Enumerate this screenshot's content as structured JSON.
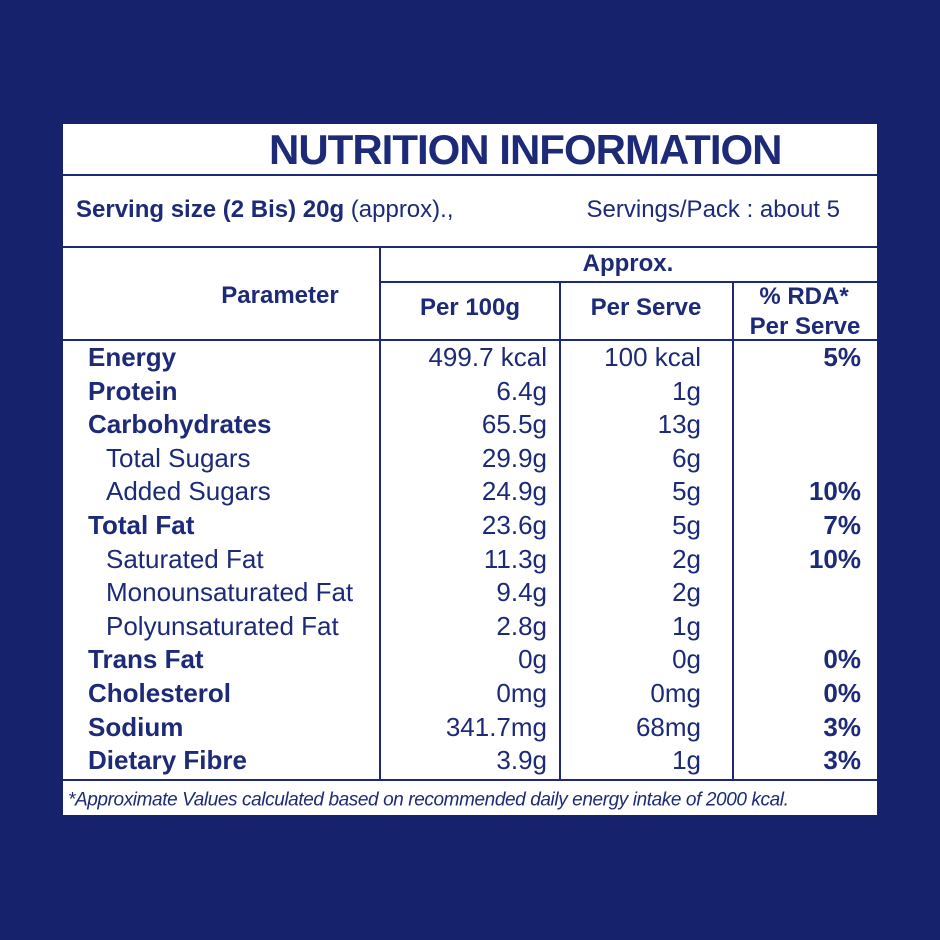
{
  "header": {
    "title": "NUTRITION INFORMATION",
    "serving_size": "Serving size (2 Bis) 20g",
    "serving_note": "(approx).,",
    "servings_per_pack": "Servings/Pack : about 5"
  },
  "table": {
    "columns": {
      "parameter": "Parameter",
      "approx": "Approx.",
      "per_100g": "Per 100g",
      "per_serve": "Per Serve",
      "rda": "% RDA*",
      "rda_sub": "Per Serve"
    },
    "rows": [
      {
        "parameter": "Energy",
        "per_100g": "499.7 kcal",
        "per_serve": "100 kcal",
        "rda": "5%"
      },
      {
        "parameter": "Protein",
        "per_100g": "6.4g",
        "per_serve": "1g"
      },
      {
        "parameter": "Carbohydrates",
        "per_100g": "65.5g",
        "per_serve": "13g"
      },
      {
        "parameter": "Total Sugars",
        "per_100g": "29.9g",
        "per_serve": "6g"
      },
      {
        "parameter": "Added Sugars",
        "per_100g": "24.9g",
        "per_serve": "5g",
        "rda": "10%"
      },
      {
        "parameter": "Total Fat",
        "per_100g": "23.6g",
        "per_serve": "5g",
        "rda": "7%"
      },
      {
        "parameter": "Saturated Fat",
        "per_100g": "11.3g",
        "per_serve": "2g",
        "rda": "10%"
      },
      {
        "parameter": "Monounsaturated Fat",
        "per_100g": "9.4g",
        "per_serve": "2g"
      },
      {
        "parameter": "Polyunsaturated Fat",
        "per_100g": "2.8g",
        "per_serve": "1g"
      },
      {
        "parameter": "Trans Fat",
        "per_100g": "0g",
        "per_serve": "0g",
        "rda": "0%"
      },
      {
        "parameter": "Cholesterol",
        "per_100g": "0mg",
        "per_serve": "0mg",
        "rda": "0%"
      },
      {
        "parameter": "Sodium",
        "per_100g": "341.7mg",
        "per_serve": "68mg",
        "rda": "3%"
      },
      {
        "parameter": "Dietary Fibre",
        "per_100g": "3.9g",
        "per_serve": "1g",
        "rda": "3%"
      }
    ]
  },
  "footnote": "*Approximate Values calculated based on recommended daily energy intake of 2000 kcal."
}
